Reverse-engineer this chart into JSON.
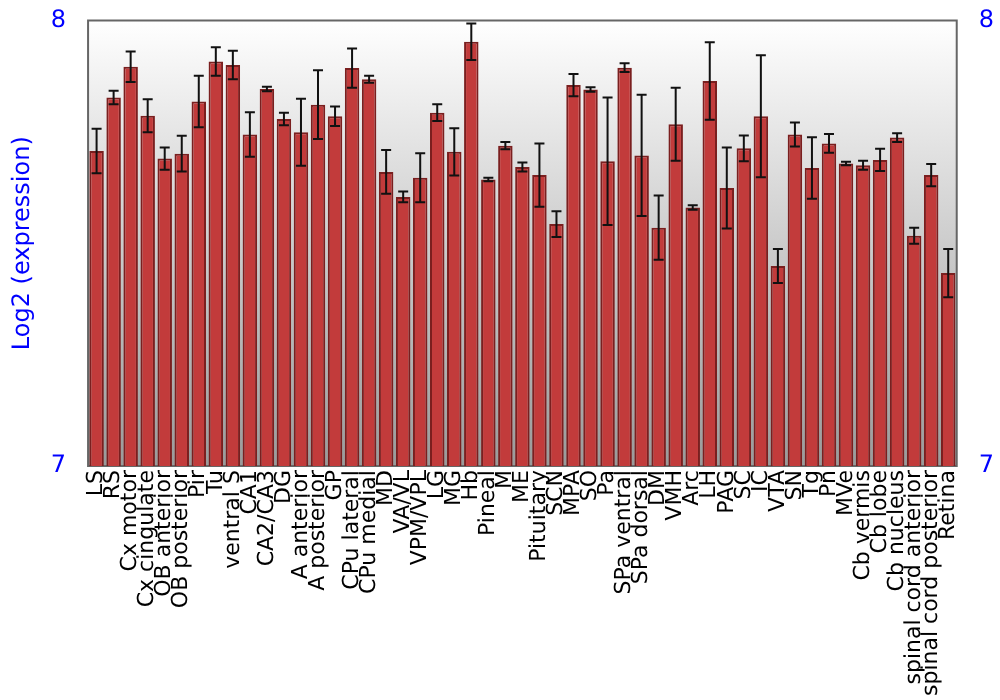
{
  "chart_data": {
    "type": "bar",
    "ylabel": "Log2 (expression)",
    "categories": [
      "LS",
      "RS",
      "Cx motor",
      "Cx cingulate",
      "OB anterior",
      "OB posterior",
      "Pir",
      "Tu",
      "ventral S",
      "CA1",
      "CA2/CA3",
      "DG",
      "A anterior",
      "A posterior",
      "GP",
      "CPu lateral",
      "CPu medial",
      "MD",
      "VA/VL",
      "VPM/VPL",
      "LG",
      "MG",
      "Hb",
      "Pineal",
      "M",
      "ME",
      "Pituitary",
      "SCN",
      "MPA",
      "SO",
      "Pa",
      "SPa ventral",
      "SPa dorsal",
      "DM",
      "VMH",
      "Arc",
      "LH",
      "PAG",
      "SC",
      "IC",
      "VTA",
      "SN",
      "Tg",
      "Pn",
      "MVe",
      "Cb vermis",
      "Cb lobe",
      "Cb nucleus",
      "spinal cord anterior",
      "spinal cord posterior",
      "Retina"
    ],
    "series": [
      {
        "color": "#c23b3b",
        "values": [
          7.707,
          7.827,
          7.896,
          7.786,
          7.69,
          7.701,
          7.818,
          7.908,
          7.9,
          7.744,
          7.846,
          7.779,
          7.749,
          7.811,
          7.785,
          7.893,
          7.868,
          7.66,
          7.604,
          7.647,
          7.793,
          7.705,
          7.952,
          7.643,
          7.719,
          7.671,
          7.653,
          7.543,
          7.855,
          7.845,
          7.684,
          7.894,
          7.697,
          7.535,
          7.767,
          7.58,
          7.864,
          7.624,
          7.713,
          7.785,
          7.449,
          7.744,
          7.669,
          7.724,
          7.679,
          7.675,
          7.687,
          7.737,
          7.517,
          7.653,
          7.433
        ],
        "errors": [
          0.05,
          0.015,
          0.034,
          0.037,
          0.025,
          0.04,
          0.058,
          0.032,
          0.032,
          0.05,
          0.005,
          0.014,
          0.075,
          0.077,
          0.022,
          0.044,
          0.008,
          0.049,
          0.012,
          0.055,
          0.019,
          0.053,
          0.041,
          0.004,
          0.008,
          0.01,
          0.071,
          0.029,
          0.025,
          0.005,
          0.143,
          0.01,
          0.136,
          0.072,
          0.082,
          0.005,
          0.087,
          0.091,
          0.029,
          0.137,
          0.038,
          0.027,
          0.069,
          0.021,
          0.004,
          0.01,
          0.025,
          0.01,
          0.018,
          0.025,
          0.054
        ]
      }
    ],
    "ylim": [
      7,
      8
    ],
    "yticks": [
      7,
      8
    ],
    "y2lim": [
      7,
      8
    ],
    "y2ticks": [
      7,
      8
    ],
    "grid": false,
    "legend": false
  }
}
